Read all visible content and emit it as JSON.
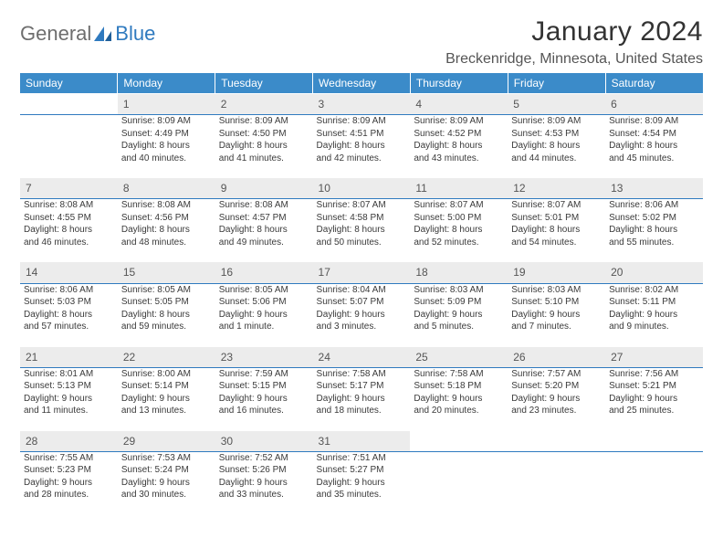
{
  "brand": {
    "part1": "General",
    "part2": "Blue"
  },
  "title": "January 2024",
  "location": "Breckenridge, Minnesota, United States",
  "weekdays": [
    "Sunday",
    "Monday",
    "Tuesday",
    "Wednesday",
    "Thursday",
    "Friday",
    "Saturday"
  ],
  "colors": {
    "header_bg": "#3b8bc9",
    "daynum_bg": "#ececec",
    "rule": "#2f7abf"
  },
  "weeks": [
    [
      null,
      {
        "n": "1",
        "sr": "Sunrise: 8:09 AM",
        "ss": "Sunset: 4:49 PM",
        "d1": "Daylight: 8 hours",
        "d2": "and 40 minutes."
      },
      {
        "n": "2",
        "sr": "Sunrise: 8:09 AM",
        "ss": "Sunset: 4:50 PM",
        "d1": "Daylight: 8 hours",
        "d2": "and 41 minutes."
      },
      {
        "n": "3",
        "sr": "Sunrise: 8:09 AM",
        "ss": "Sunset: 4:51 PM",
        "d1": "Daylight: 8 hours",
        "d2": "and 42 minutes."
      },
      {
        "n": "4",
        "sr": "Sunrise: 8:09 AM",
        "ss": "Sunset: 4:52 PM",
        "d1": "Daylight: 8 hours",
        "d2": "and 43 minutes."
      },
      {
        "n": "5",
        "sr": "Sunrise: 8:09 AM",
        "ss": "Sunset: 4:53 PM",
        "d1": "Daylight: 8 hours",
        "d2": "and 44 minutes."
      },
      {
        "n": "6",
        "sr": "Sunrise: 8:09 AM",
        "ss": "Sunset: 4:54 PM",
        "d1": "Daylight: 8 hours",
        "d2": "and 45 minutes."
      }
    ],
    [
      {
        "n": "7",
        "sr": "Sunrise: 8:08 AM",
        "ss": "Sunset: 4:55 PM",
        "d1": "Daylight: 8 hours",
        "d2": "and 46 minutes."
      },
      {
        "n": "8",
        "sr": "Sunrise: 8:08 AM",
        "ss": "Sunset: 4:56 PM",
        "d1": "Daylight: 8 hours",
        "d2": "and 48 minutes."
      },
      {
        "n": "9",
        "sr": "Sunrise: 8:08 AM",
        "ss": "Sunset: 4:57 PM",
        "d1": "Daylight: 8 hours",
        "d2": "and 49 minutes."
      },
      {
        "n": "10",
        "sr": "Sunrise: 8:07 AM",
        "ss": "Sunset: 4:58 PM",
        "d1": "Daylight: 8 hours",
        "d2": "and 50 minutes."
      },
      {
        "n": "11",
        "sr": "Sunrise: 8:07 AM",
        "ss": "Sunset: 5:00 PM",
        "d1": "Daylight: 8 hours",
        "d2": "and 52 minutes."
      },
      {
        "n": "12",
        "sr": "Sunrise: 8:07 AM",
        "ss": "Sunset: 5:01 PM",
        "d1": "Daylight: 8 hours",
        "d2": "and 54 minutes."
      },
      {
        "n": "13",
        "sr": "Sunrise: 8:06 AM",
        "ss": "Sunset: 5:02 PM",
        "d1": "Daylight: 8 hours",
        "d2": "and 55 minutes."
      }
    ],
    [
      {
        "n": "14",
        "sr": "Sunrise: 8:06 AM",
        "ss": "Sunset: 5:03 PM",
        "d1": "Daylight: 8 hours",
        "d2": "and 57 minutes."
      },
      {
        "n": "15",
        "sr": "Sunrise: 8:05 AM",
        "ss": "Sunset: 5:05 PM",
        "d1": "Daylight: 8 hours",
        "d2": "and 59 minutes."
      },
      {
        "n": "16",
        "sr": "Sunrise: 8:05 AM",
        "ss": "Sunset: 5:06 PM",
        "d1": "Daylight: 9 hours",
        "d2": "and 1 minute."
      },
      {
        "n": "17",
        "sr": "Sunrise: 8:04 AM",
        "ss": "Sunset: 5:07 PM",
        "d1": "Daylight: 9 hours",
        "d2": "and 3 minutes."
      },
      {
        "n": "18",
        "sr": "Sunrise: 8:03 AM",
        "ss": "Sunset: 5:09 PM",
        "d1": "Daylight: 9 hours",
        "d2": "and 5 minutes."
      },
      {
        "n": "19",
        "sr": "Sunrise: 8:03 AM",
        "ss": "Sunset: 5:10 PM",
        "d1": "Daylight: 9 hours",
        "d2": "and 7 minutes."
      },
      {
        "n": "20",
        "sr": "Sunrise: 8:02 AM",
        "ss": "Sunset: 5:11 PM",
        "d1": "Daylight: 9 hours",
        "d2": "and 9 minutes."
      }
    ],
    [
      {
        "n": "21",
        "sr": "Sunrise: 8:01 AM",
        "ss": "Sunset: 5:13 PM",
        "d1": "Daylight: 9 hours",
        "d2": "and 11 minutes."
      },
      {
        "n": "22",
        "sr": "Sunrise: 8:00 AM",
        "ss": "Sunset: 5:14 PM",
        "d1": "Daylight: 9 hours",
        "d2": "and 13 minutes."
      },
      {
        "n": "23",
        "sr": "Sunrise: 7:59 AM",
        "ss": "Sunset: 5:15 PM",
        "d1": "Daylight: 9 hours",
        "d2": "and 16 minutes."
      },
      {
        "n": "24",
        "sr": "Sunrise: 7:58 AM",
        "ss": "Sunset: 5:17 PM",
        "d1": "Daylight: 9 hours",
        "d2": "and 18 minutes."
      },
      {
        "n": "25",
        "sr": "Sunrise: 7:58 AM",
        "ss": "Sunset: 5:18 PM",
        "d1": "Daylight: 9 hours",
        "d2": "and 20 minutes."
      },
      {
        "n": "26",
        "sr": "Sunrise: 7:57 AM",
        "ss": "Sunset: 5:20 PM",
        "d1": "Daylight: 9 hours",
        "d2": "and 23 minutes."
      },
      {
        "n": "27",
        "sr": "Sunrise: 7:56 AM",
        "ss": "Sunset: 5:21 PM",
        "d1": "Daylight: 9 hours",
        "d2": "and 25 minutes."
      }
    ],
    [
      {
        "n": "28",
        "sr": "Sunrise: 7:55 AM",
        "ss": "Sunset: 5:23 PM",
        "d1": "Daylight: 9 hours",
        "d2": "and 28 minutes."
      },
      {
        "n": "29",
        "sr": "Sunrise: 7:53 AM",
        "ss": "Sunset: 5:24 PM",
        "d1": "Daylight: 9 hours",
        "d2": "and 30 minutes."
      },
      {
        "n": "30",
        "sr": "Sunrise: 7:52 AM",
        "ss": "Sunset: 5:26 PM",
        "d1": "Daylight: 9 hours",
        "d2": "and 33 minutes."
      },
      {
        "n": "31",
        "sr": "Sunrise: 7:51 AM",
        "ss": "Sunset: 5:27 PM",
        "d1": "Daylight: 9 hours",
        "d2": "and 35 minutes."
      },
      null,
      null,
      null
    ]
  ]
}
